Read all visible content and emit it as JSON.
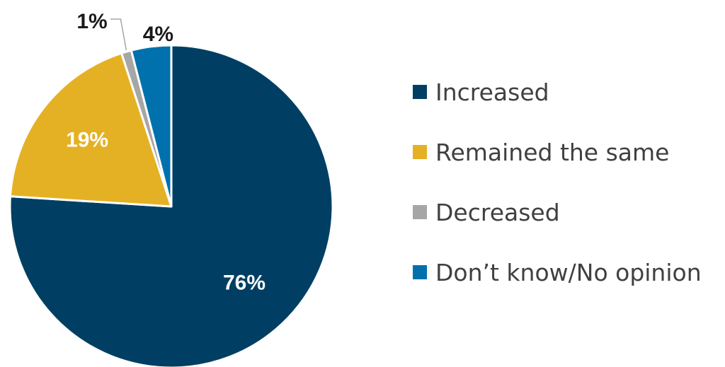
{
  "chart_data": {
    "type": "pie",
    "start_angle": "12 o'clock",
    "direction": "clockwise",
    "legend_position": "right",
    "slices": [
      {
        "label": "Increased",
        "value": 76,
        "value_label": "76%",
        "color": "#003f63",
        "label_color": "#ffffff",
        "label_placement": "inside"
      },
      {
        "label": "Remained the same",
        "value": 19,
        "value_label": "19%",
        "color": "#e5b124",
        "label_color": "#ffffff",
        "label_placement": "inside"
      },
      {
        "label": "Decreased",
        "value": 1,
        "value_label": "1%",
        "color": "#a6a6a6",
        "label_color": "#1a1a1a",
        "label_placement": "outside-leader"
      },
      {
        "label": "Don’t know/No opinion",
        "value": 4,
        "value_label": "4%",
        "color": "#0071ad",
        "label_color": "#1a1a1a",
        "label_placement": "outside"
      }
    ]
  }
}
